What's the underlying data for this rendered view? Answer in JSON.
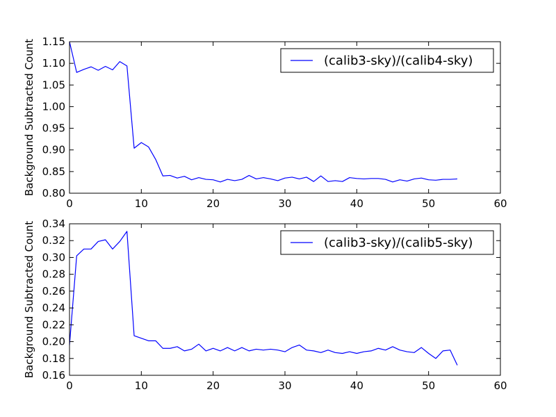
{
  "chart_data": [
    {
      "type": "line",
      "title": "",
      "xlabel": "",
      "ylabel": "Background Subtracted Count",
      "xlim": [
        0,
        60
      ],
      "ylim": [
        0.8,
        1.15
      ],
      "xticks": [
        "0",
        "10",
        "20",
        "30",
        "40",
        "50",
        "60"
      ],
      "yticks": [
        "0.80",
        "0.85",
        "0.90",
        "0.95",
        "1.00",
        "1.05",
        "1.10",
        "1.15"
      ],
      "legend_position": "top-right",
      "grid": false,
      "series": [
        {
          "name": "(calib3-sky)/(calib4-sky)",
          "color": "#0000ff",
          "x": [
            0,
            1,
            2,
            3,
            4,
            5,
            6,
            7,
            8,
            9,
            10,
            11,
            12,
            13,
            14,
            15,
            16,
            17,
            18,
            19,
            20,
            21,
            22,
            23,
            24,
            25,
            26,
            27,
            28,
            29,
            30,
            31,
            32,
            33,
            34,
            35,
            36,
            37,
            38,
            39,
            40,
            41,
            42,
            43,
            44,
            45,
            46,
            47,
            48,
            49,
            50,
            51,
            52,
            53,
            54
          ],
          "y": [
            1.15,
            1.079,
            1.086,
            1.092,
            1.084,
            1.093,
            1.085,
            1.104,
            1.094,
            0.904,
            0.917,
            0.907,
            0.878,
            0.84,
            0.841,
            0.835,
            0.839,
            0.831,
            0.836,
            0.832,
            0.831,
            0.826,
            0.832,
            0.829,
            0.832,
            0.841,
            0.833,
            0.836,
            0.833,
            0.829,
            0.835,
            0.837,
            0.833,
            0.837,
            0.827,
            0.84,
            0.827,
            0.829,
            0.827,
            0.836,
            0.834,
            0.833,
            0.834,
            0.834,
            0.832,
            0.826,
            0.831,
            0.828,
            0.833,
            0.835,
            0.831,
            0.83,
            0.832,
            0.832,
            0.833
          ]
        }
      ]
    },
    {
      "type": "line",
      "title": "",
      "xlabel": "",
      "ylabel": "Background Subtracted Count",
      "xlim": [
        0,
        60
      ],
      "ylim": [
        0.16,
        0.34
      ],
      "xticks": [
        "0",
        "10",
        "20",
        "30",
        "40",
        "50",
        "60"
      ],
      "yticks": [
        "0.16",
        "0.18",
        "0.20",
        "0.22",
        "0.24",
        "0.26",
        "0.28",
        "0.30",
        "0.32",
        "0.34"
      ],
      "legend_position": "top-right",
      "grid": false,
      "series": [
        {
          "name": "(calib3-sky)/(calib5-sky)",
          "color": "#0000ff",
          "x": [
            0,
            1,
            2,
            3,
            4,
            5,
            6,
            7,
            8,
            9,
            10,
            11,
            12,
            13,
            14,
            15,
            16,
            17,
            18,
            19,
            20,
            21,
            22,
            23,
            24,
            25,
            26,
            27,
            28,
            29,
            30,
            31,
            32,
            33,
            34,
            35,
            36,
            37,
            38,
            39,
            40,
            41,
            42,
            43,
            44,
            45,
            46,
            47,
            48,
            49,
            50,
            51,
            52,
            53,
            54
          ],
          "y": [
            0.196,
            0.302,
            0.31,
            0.31,
            0.319,
            0.321,
            0.31,
            0.319,
            0.331,
            0.207,
            0.204,
            0.201,
            0.201,
            0.192,
            0.192,
            0.194,
            0.189,
            0.191,
            0.197,
            0.189,
            0.192,
            0.189,
            0.193,
            0.189,
            0.193,
            0.189,
            0.191,
            0.19,
            0.191,
            0.19,
            0.188,
            0.193,
            0.196,
            0.19,
            0.189,
            0.187,
            0.19,
            0.187,
            0.186,
            0.188,
            0.186,
            0.188,
            0.189,
            0.192,
            0.19,
            0.194,
            0.19,
            0.188,
            0.187,
            0.193,
            0.186,
            0.18,
            0.189,
            0.19,
            0.172
          ]
        }
      ]
    }
  ]
}
